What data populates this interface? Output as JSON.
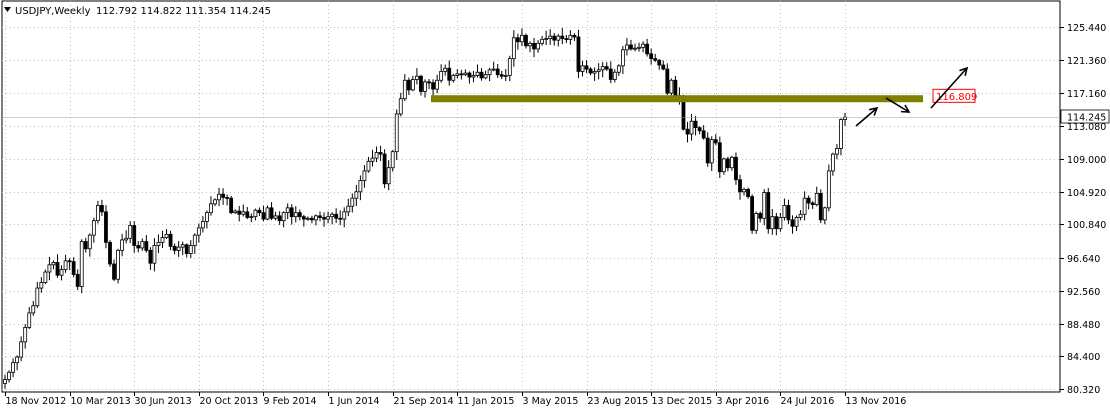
{
  "header": {
    "symbol": "USDJPY,Weekly",
    "ohlc": "112.792 114.822 111.354 114.245"
  },
  "chart_data": {
    "type": "candlestick",
    "ylim": [
      79.8,
      127.2
    ],
    "y_ticks": [
      "125.440",
      "121.360",
      "117.160",
      "113.080",
      "109.000",
      "104.920",
      "100.840",
      "96.640",
      "92.560",
      "88.480",
      "84.400",
      "80.320"
    ],
    "x_ticks": [
      "18 Nov 2012",
      "10 Mar 2013",
      "30 Jun 2013",
      "20 Oct 2013",
      "9 Feb 2014",
      "1 Jun 2014",
      "21 Sep 2014",
      "11 Jan 2015",
      "3 May 2015",
      "23 Aug 2015",
      "13 Dec 2015",
      "3 Apr 2016",
      "24 Jul 2016",
      "13 Nov 2016"
    ],
    "x_tick_index": [
      0,
      16,
      32,
      48,
      64,
      80,
      96,
      112,
      128,
      144,
      160,
      176,
      192,
      208
    ],
    "closes_approx": [
      81.5,
      82.4,
      83.6,
      84.3,
      86.2,
      88.0,
      89.8,
      90.7,
      92.9,
      93.6,
      94.9,
      95.8,
      96.1,
      94.5,
      95.2,
      96.3,
      96.2,
      94.6,
      93.1,
      98.7,
      97.8,
      99.5,
      101.3,
      103.2,
      102.4,
      98.6,
      95.9,
      94.0,
      97.6,
      98.9,
      99.1,
      100.7,
      98.2,
      97.9,
      98.7,
      97.6,
      96.0,
      98.2,
      98.6,
      99.2,
      99.6,
      98.1,
      97.6,
      98.0,
      98.3,
      97.2,
      98.2,
      99.5,
      100.4,
      101.2,
      102.3,
      103.4,
      103.9,
      104.6,
      104.2,
      104.1,
      102.3,
      102.5,
      102.1,
      102.4,
      101.7,
      101.8,
      102.6,
      102.3,
      101.5,
      102.9,
      101.6,
      101.9,
      101.3,
      102.3,
      102.9,
      101.8,
      102.3,
      101.8,
      101.5,
      101.6,
      101.4,
      101.9,
      101.7,
      101.5,
      101.8,
      102.1,
      101.6,
      101.5,
      102.4,
      103.1,
      104.1,
      104.9,
      106.3,
      107.5,
      108.7,
      109.1,
      109.8,
      109.6,
      105.9,
      107.9,
      109.9,
      114.6,
      116.5,
      118.8,
      117.6,
      118.9,
      119.3,
      117.4,
      118.6,
      118.5,
      117.7,
      118.8,
      119.9,
      120.3,
      118.8,
      119.4,
      119.6,
      119.5,
      119.7,
      119.2,
      119.4,
      119.8,
      119.1,
      119.5,
      120.1,
      120.2,
      119.5,
      119.3,
      119.4,
      121.5,
      124.1,
      123.6,
      124.4,
      123.1,
      123.4,
      122.7,
      123.4,
      123.9,
      124.0,
      124.3,
      123.8,
      124.3,
      124.0,
      123.9,
      124.4,
      124.2,
      119.9,
      120.6,
      120.2,
      119.7,
      119.9,
      120.1,
      120.5,
      120.2,
      118.9,
      119.8,
      120.6,
      122.6,
      123.2,
      122.7,
      122.8,
      122.9,
      123.3,
      122.1,
      121.5,
      121.3,
      120.7,
      120.2,
      117.2,
      118.8,
      116.9,
      116.7,
      112.7,
      112.1,
      113.7,
      112.9,
      112.5,
      111.6,
      108.5,
      111.4,
      111.0,
      107.4,
      109.0,
      107.9,
      109.2,
      106.4,
      104.9,
      105.2,
      104.3,
      100.1,
      102.2,
      101.6,
      104.8,
      100.3,
      101.8,
      100.3,
      101.7,
      103.2,
      101.4,
      100.6,
      101.7,
      102.1,
      104.1,
      103.5,
      103.3,
      104.7,
      101.4,
      102.9,
      107.5,
      109.6,
      110.3,
      113.9,
      114.2
    ]
  },
  "annotations": {
    "level_label": "116.809",
    "last_price": "114.245"
  },
  "colors": {
    "candle": "#000000",
    "level_line": "#808000",
    "level_label_border": "#ff0000",
    "level_label_text": "#ff0000",
    "grid": "#c0c0c0",
    "last_price_bg": "#ffffff"
  }
}
